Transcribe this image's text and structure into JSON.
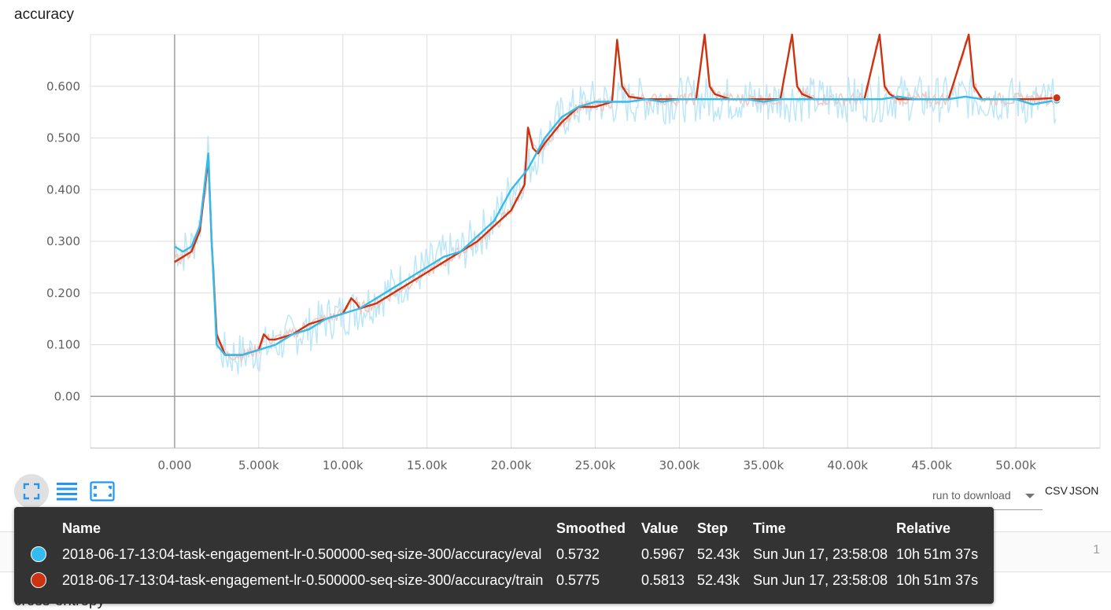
{
  "chart_data": {
    "type": "line",
    "title": "accuracy",
    "xlabel": "",
    "ylabel": "",
    "xlim": [
      -5000,
      55000
    ],
    "ylim": [
      -0.1,
      0.7
    ],
    "grid": true,
    "x_ticks": [
      0,
      5000,
      10000,
      15000,
      20000,
      25000,
      30000,
      35000,
      40000,
      45000,
      50000
    ],
    "x_tick_labels": [
      "0.000",
      "5.000k",
      "10.00k",
      "15.00k",
      "20.00k",
      "25.00k",
      "30.00k",
      "35.00k",
      "40.00k",
      "45.00k",
      "50.00k"
    ],
    "y_ticks": [
      0,
      0.1,
      0.2,
      0.3,
      0.4,
      0.5,
      0.6
    ],
    "y_tick_labels": [
      "0.00",
      "0.100",
      "0.200",
      "0.300",
      "0.400",
      "0.500",
      "0.600"
    ],
    "series": [
      {
        "name": "2018-06-17-13:04-task-engagement-lr-0.500000-seq-size-300/accuracy/eval",
        "color": "#33bbee",
        "raw_color": "#b5e4f7",
        "x": [
          0,
          500,
          1000,
          1500,
          2000,
          2200,
          2500,
          3000,
          3500,
          4000,
          5000,
          6000,
          7000,
          8000,
          9000,
          10000,
          11000,
          12000,
          13000,
          14000,
          15000,
          16000,
          17000,
          18000,
          19000,
          20000,
          21000,
          22000,
          23000,
          24000,
          25000,
          26000,
          27000,
          28000,
          29000,
          30000,
          31000,
          32000,
          33000,
          34000,
          35000,
          36000,
          37000,
          38000,
          39000,
          40000,
          41000,
          42000,
          43000,
          44000,
          45000,
          46000,
          47000,
          48000,
          49000,
          50000,
          51000,
          52430
        ],
        "y": [
          0.29,
          0.28,
          0.29,
          0.33,
          0.47,
          0.3,
          0.1,
          0.08,
          0.08,
          0.08,
          0.09,
          0.1,
          0.12,
          0.13,
          0.15,
          0.16,
          0.17,
          0.19,
          0.21,
          0.23,
          0.25,
          0.27,
          0.28,
          0.31,
          0.34,
          0.4,
          0.44,
          0.5,
          0.54,
          0.56,
          0.57,
          0.57,
          0.57,
          0.575,
          0.57,
          0.575,
          0.575,
          0.575,
          0.575,
          0.575,
          0.57,
          0.575,
          0.575,
          0.575,
          0.575,
          0.575,
          0.575,
          0.575,
          0.58,
          0.575,
          0.575,
          0.575,
          0.58,
          0.575,
          0.575,
          0.575,
          0.565,
          0.5732
        ]
      },
      {
        "name": "2018-06-17-13:04-task-engagement-lr-0.500000-seq-size-300/accuracy/train",
        "color": "#cc3311",
        "raw_color": "#f2c2b8",
        "x": [
          0,
          500,
          1000,
          1500,
          2000,
          2200,
          2500,
          3000,
          4000,
          5000,
          5300,
          5600,
          6000,
          7000,
          8000,
          9000,
          10000,
          10500,
          10800,
          11000,
          12000,
          13000,
          14000,
          15000,
          16000,
          17000,
          18000,
          19000,
          20000,
          20800,
          21000,
          21300,
          21600,
          22000,
          23000,
          24000,
          25000,
          26000,
          26300,
          26600,
          27000,
          28000,
          29000,
          30000,
          31000,
          31500,
          31800,
          32100,
          33000,
          34000,
          35000,
          36000,
          36700,
          37000,
          37300,
          38000,
          39000,
          40000,
          41000,
          41900,
          42200,
          42500,
          43000,
          44000,
          45000,
          46000,
          47200,
          47500,
          47800,
          48000,
          49000,
          50000,
          51000,
          52430
        ],
        "y": [
          0.26,
          0.27,
          0.28,
          0.32,
          0.46,
          0.3,
          0.12,
          0.08,
          0.08,
          0.09,
          0.12,
          0.11,
          0.11,
          0.12,
          0.14,
          0.15,
          0.16,
          0.19,
          0.18,
          0.17,
          0.18,
          0.2,
          0.22,
          0.24,
          0.26,
          0.28,
          0.3,
          0.33,
          0.36,
          0.41,
          0.52,
          0.48,
          0.47,
          0.49,
          0.53,
          0.56,
          0.56,
          0.57,
          0.69,
          0.6,
          0.58,
          0.575,
          0.575,
          0.575,
          0.575,
          0.7,
          0.6,
          0.585,
          0.575,
          0.575,
          0.575,
          0.575,
          0.7,
          0.6,
          0.585,
          0.575,
          0.575,
          0.575,
          0.575,
          0.7,
          0.6,
          0.585,
          0.575,
          0.575,
          0.575,
          0.575,
          0.7,
          0.6,
          0.585,
          0.575,
          0.575,
          0.575,
          0.575,
          0.5775
        ]
      }
    ]
  },
  "toolbar": {
    "expand_icon": "fullscreen-icon",
    "lines_icon": "list-lines-icon",
    "fit_icon": "fit-domain-icon"
  },
  "download": {
    "label": "run to download",
    "csv": "CSV",
    "json": "JSON"
  },
  "tooltip": {
    "headers": {
      "name": "Name",
      "smoothed": "Smoothed",
      "value": "Value",
      "step": "Step",
      "time": "Time",
      "relative": "Relative"
    },
    "rows": [
      {
        "color": "#33bbee",
        "name": "2018-06-17-13:04-task-engagement-lr-0.500000-seq-size-300/accuracy/eval",
        "smoothed": "0.5732",
        "value": "0.5967",
        "step": "52.43k",
        "time": "Sun Jun 17, 23:58:08",
        "relative": "10h 51m 37s"
      },
      {
        "color": "#cc3311",
        "name": "2018-06-17-13:04-task-engagement-lr-0.500000-seq-size-300/accuracy/train",
        "smoothed": "0.5775",
        "value": "0.5813",
        "step": "52.43k",
        "time": "Sun Jun 17, 23:58:08",
        "relative": "10h 51m 37s"
      }
    ]
  },
  "next_card": {
    "page": "1",
    "title": "cross-entropy"
  }
}
